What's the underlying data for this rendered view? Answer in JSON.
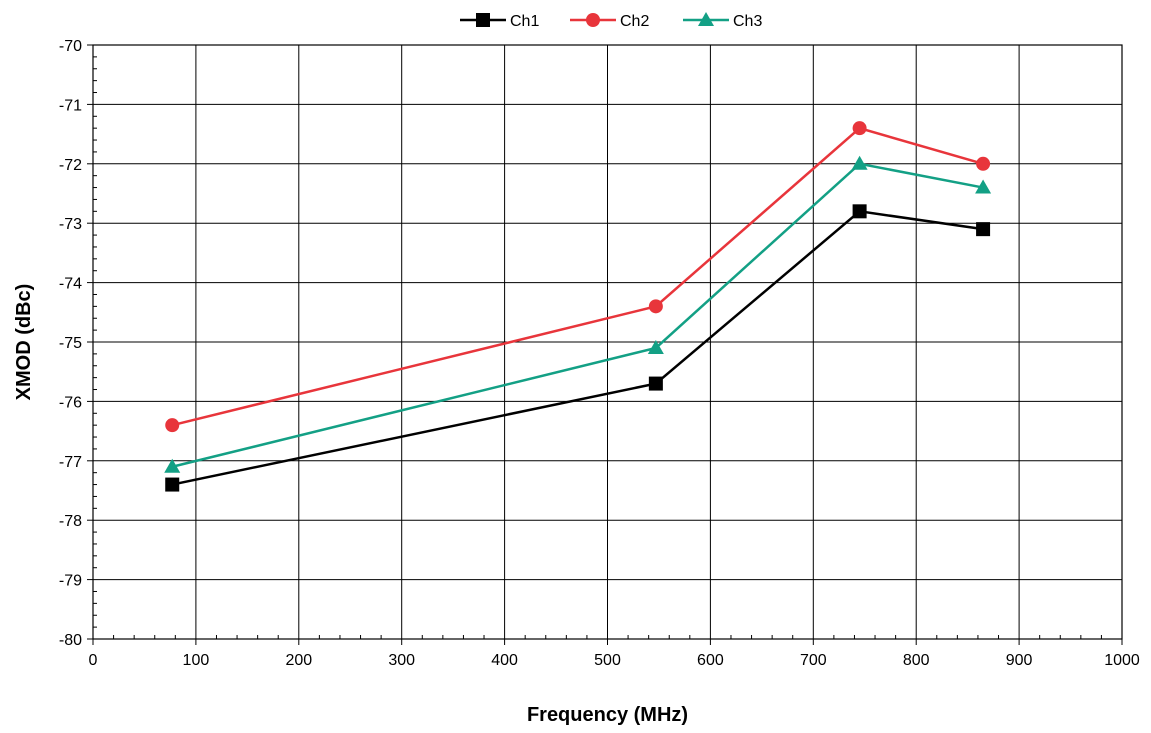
{
  "chart_data": {
    "type": "line",
    "title": "",
    "xlabel": "Frequency (MHz)",
    "ylabel": "XMOD (dBc)",
    "xlim": [
      0,
      1000
    ],
    "ylim": [
      -80,
      -70
    ],
    "x_ticks": [
      0,
      100,
      200,
      300,
      400,
      500,
      600,
      700,
      800,
      900,
      1000
    ],
    "y_ticks": [
      -70,
      -71,
      -72,
      -73,
      -74,
      -75,
      -76,
      -77,
      -78,
      -79,
      -80
    ],
    "grid": true,
    "legend_position": "top-center",
    "x": [
      77,
      547,
      745,
      865
    ],
    "series": [
      {
        "name": "Ch1",
        "values": [
          -77.4,
          -75.7,
          -72.8,
          -73.1
        ],
        "color": "#000000",
        "marker": "square"
      },
      {
        "name": "Ch2",
        "values": [
          -76.4,
          -74.4,
          -71.4,
          -72.0
        ],
        "color": "#e8353b",
        "marker": "circle"
      },
      {
        "name": "Ch3",
        "values": [
          -77.1,
          -75.1,
          -72.0,
          -72.4
        ],
        "color": "#13a085",
        "marker": "triangle"
      }
    ]
  }
}
